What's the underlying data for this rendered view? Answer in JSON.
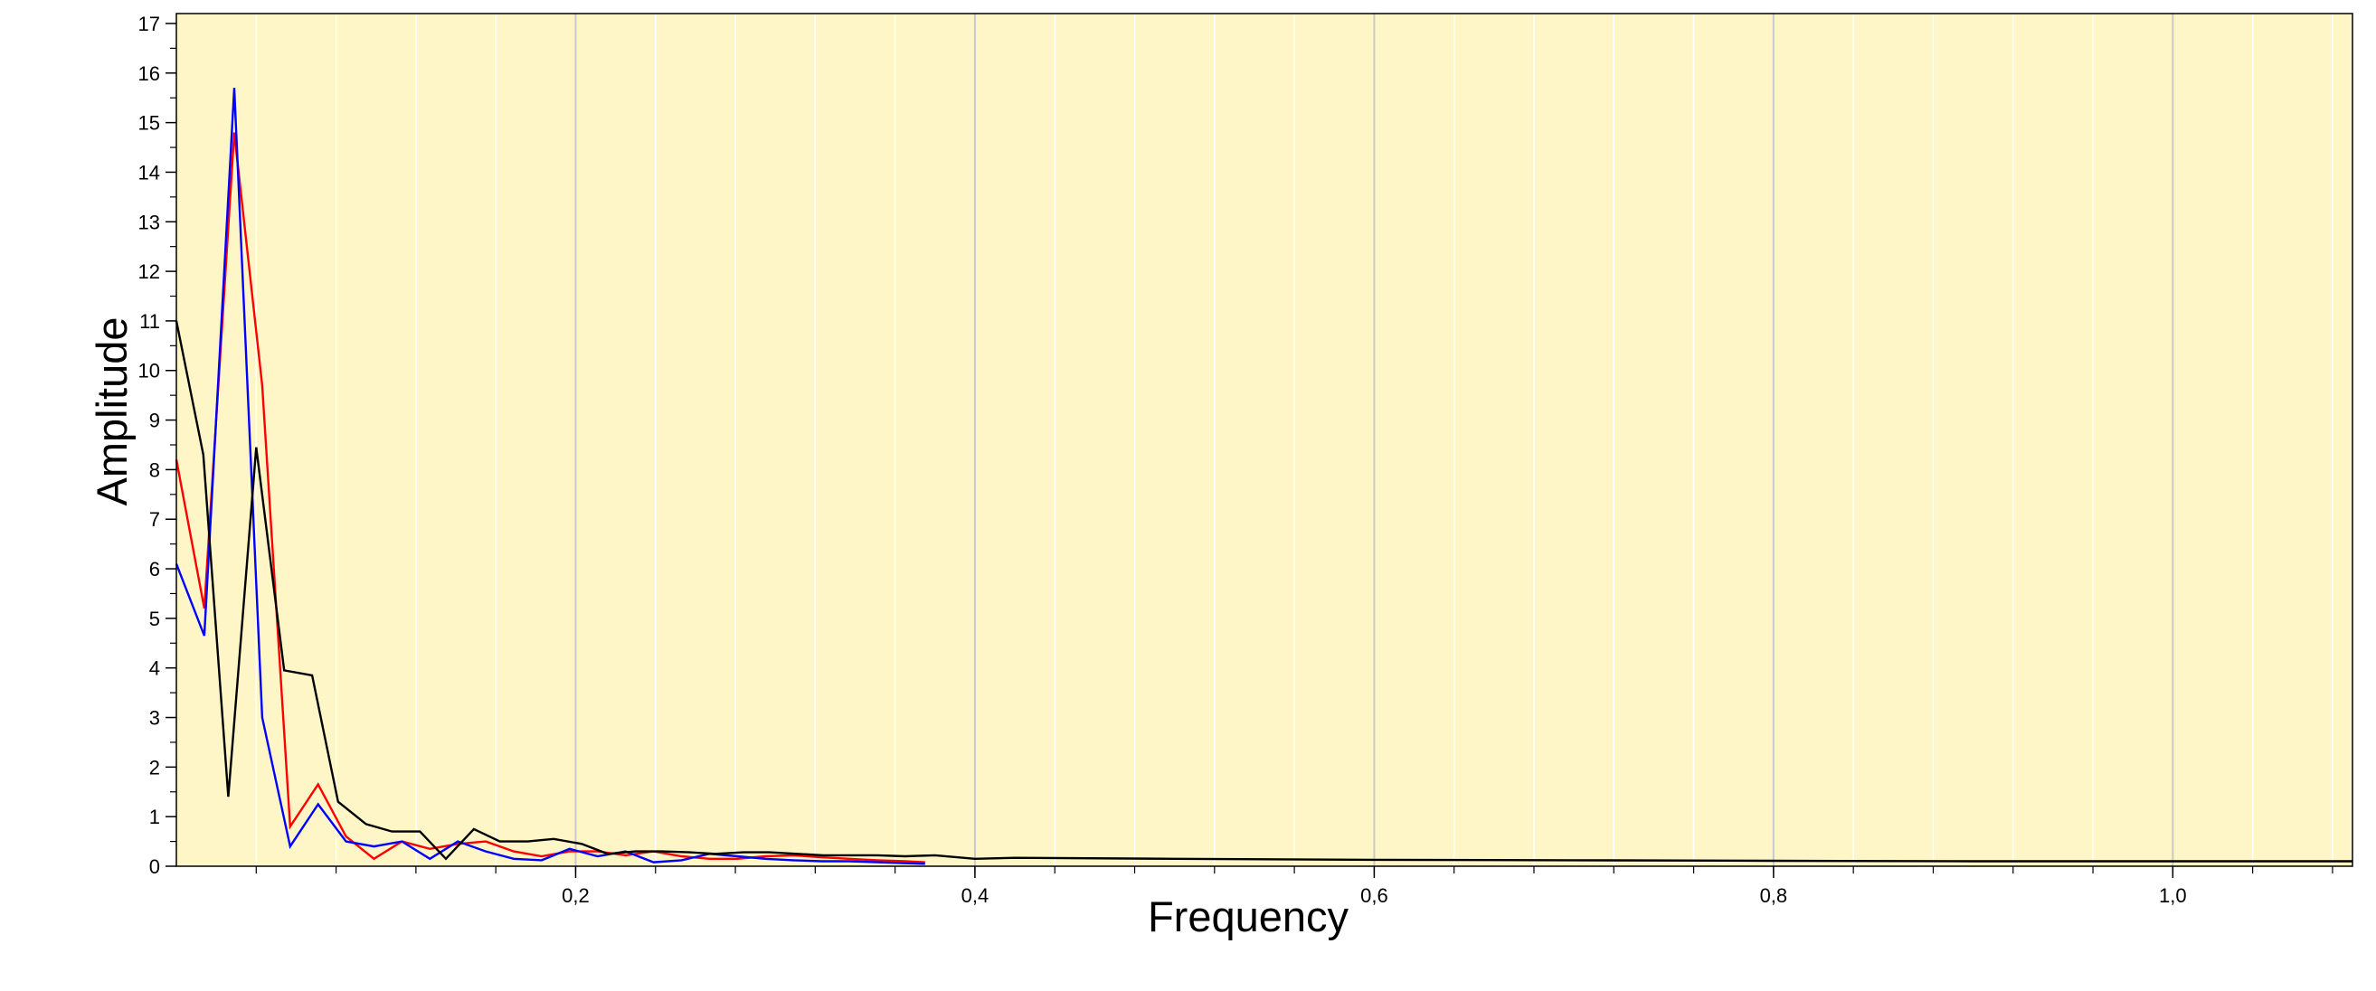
{
  "chart_data": {
    "type": "line",
    "title": "",
    "xlabel": "Frequency",
    "ylabel": "Amplitude",
    "xlim": [
      0.0,
      1.09
    ],
    "ylim": [
      0,
      17.2
    ],
    "x_ticks": [
      0.2,
      0.4,
      0.6,
      0.8,
      1.0
    ],
    "x_tick_labels": [
      "0,2",
      "0,4",
      "0,6",
      "0,8",
      "1,0"
    ],
    "y_ticks": [
      0,
      1,
      2,
      3,
      4,
      5,
      6,
      7,
      8,
      9,
      10,
      11,
      12,
      13,
      14,
      15,
      16,
      17
    ],
    "y_tick_labels": [
      "0",
      "1",
      "2",
      "3",
      "4",
      "5",
      "6",
      "7",
      "8",
      "9",
      "10",
      "11",
      "12",
      "13",
      "14",
      "15",
      "16",
      "17"
    ],
    "grid": "vertical",
    "legend": "none",
    "colors": {
      "plot_background": "#fff6c8",
      "grid": "#d7d7d7"
    },
    "series": [
      {
        "color": "#ff0000",
        "x": [
          0.0,
          0.014,
          0.029,
          0.043,
          0.057,
          0.071,
          0.085,
          0.099,
          0.113,
          0.127,
          0.141,
          0.155,
          0.169,
          0.183,
          0.197,
          0.211,
          0.225,
          0.239,
          0.253,
          0.267,
          0.281,
          0.295,
          0.309,
          0.323,
          0.337,
          0.351,
          0.365,
          0.375
        ],
        "y": [
          8.2,
          5.2,
          14.8,
          9.7,
          0.8,
          1.65,
          0.6,
          0.15,
          0.5,
          0.35,
          0.45,
          0.5,
          0.3,
          0.2,
          0.3,
          0.3,
          0.22,
          0.3,
          0.2,
          0.15,
          0.15,
          0.2,
          0.22,
          0.18,
          0.15,
          0.12,
          0.1,
          0.08
        ]
      },
      {
        "color": "#0000ff",
        "x": [
          0.0,
          0.014,
          0.029,
          0.043,
          0.057,
          0.071,
          0.085,
          0.099,
          0.113,
          0.127,
          0.141,
          0.155,
          0.169,
          0.183,
          0.197,
          0.211,
          0.225,
          0.239,
          0.253,
          0.267,
          0.281,
          0.295,
          0.309,
          0.323,
          0.337,
          0.351,
          0.365,
          0.375
        ],
        "y": [
          6.1,
          4.65,
          15.7,
          3.0,
          0.4,
          1.25,
          0.5,
          0.4,
          0.5,
          0.15,
          0.5,
          0.3,
          0.15,
          0.12,
          0.35,
          0.2,
          0.3,
          0.08,
          0.12,
          0.25,
          0.2,
          0.15,
          0.12,
          0.1,
          0.1,
          0.08,
          0.06,
          0.05
        ]
      },
      {
        "color": "#000000",
        "x": [
          0.0,
          0.0135,
          0.026,
          0.04,
          0.054,
          0.068,
          0.081,
          0.095,
          0.108,
          0.122,
          0.135,
          0.149,
          0.162,
          0.176,
          0.189,
          0.203,
          0.216,
          0.23,
          0.243,
          0.257,
          0.27,
          0.284,
          0.297,
          0.311,
          0.324,
          0.338,
          0.351,
          0.365,
          0.38,
          0.4,
          0.42,
          0.5,
          0.6,
          0.7,
          0.8,
          0.9,
          1.0,
          1.09
        ],
        "y": [
          11.0,
          8.3,
          1.4,
          8.45,
          3.95,
          3.85,
          1.3,
          0.85,
          0.7,
          0.7,
          0.15,
          0.75,
          0.5,
          0.5,
          0.55,
          0.45,
          0.25,
          0.3,
          0.3,
          0.28,
          0.25,
          0.28,
          0.28,
          0.25,
          0.22,
          0.22,
          0.22,
          0.2,
          0.22,
          0.15,
          0.17,
          0.15,
          0.13,
          0.12,
          0.11,
          0.1,
          0.1,
          0.1
        ]
      }
    ]
  }
}
